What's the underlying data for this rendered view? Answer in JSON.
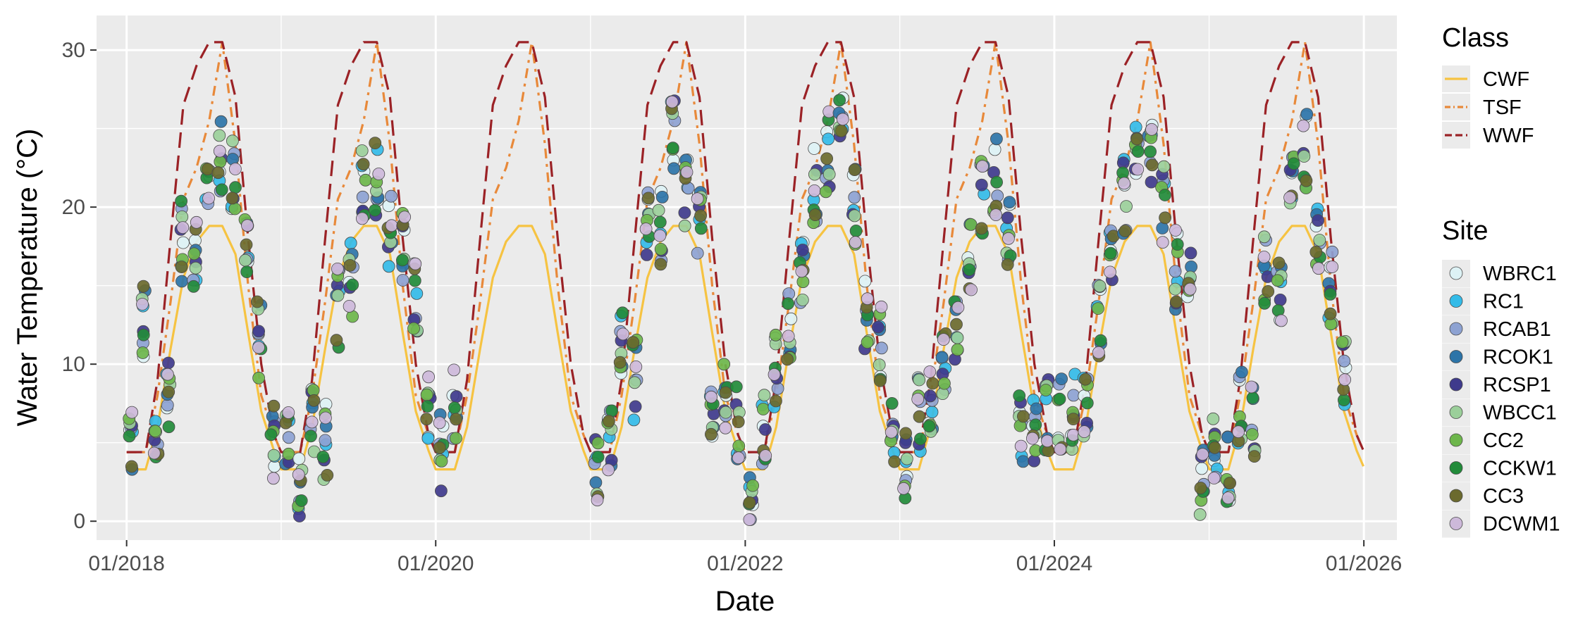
{
  "chart_data": {
    "type": "line+scatter",
    "xlabel": "Date",
    "ylabel": "Water Temperature (°C)",
    "ylim": [
      -1.2,
      32.2
    ],
    "xlim": [
      "2017-10-22",
      "2026-03-20"
    ],
    "x_ticks": [
      "01/2018",
      "01/2020",
      "01/2022",
      "01/2024",
      "01/2026"
    ],
    "y_ticks": [
      0,
      10,
      20,
      30
    ],
    "grid": true,
    "legend_position": "right",
    "class_legend": {
      "title": "Class",
      "entries": [
        {
          "name": "CWF",
          "color": "#F6C342",
          "dash": "solid"
        },
        {
          "name": "TSF",
          "color": "#E8893A",
          "dash": "dash-dot"
        },
        {
          "name": "WWF",
          "color": "#9B2226",
          "dash": "dashed"
        }
      ]
    },
    "site_legend": {
      "title": "Site",
      "entries": [
        {
          "name": "WBRC1",
          "color": "#DDF2F5"
        },
        {
          "name": "RC1",
          "color": "#33BBE8"
        },
        {
          "name": "RCAB1",
          "color": "#8DA2D2"
        },
        {
          "name": "RCOK1",
          "color": "#2C74A8"
        },
        {
          "name": "RCSP1",
          "color": "#3F3A8C"
        },
        {
          "name": "WBCC1",
          "color": "#9BCF9A"
        },
        {
          "name": "CC2",
          "color": "#6DB64B"
        },
        {
          "name": "CCKW1",
          "color": "#228B3A"
        },
        {
          "name": "CC3",
          "color": "#6B6A2E"
        },
        {
          "name": "DCWM1",
          "color": "#CDB9DA"
        }
      ]
    },
    "class_series": {
      "start": "2018-01-01",
      "end": "2025-12-31",
      "CWF_monthly": [
        3.3,
        3.3,
        6.0,
        11.0,
        15.5,
        17.8,
        18.8,
        18.8,
        17.0,
        12.0,
        7.0,
        4.5
      ],
      "TSF_monthly": [
        4.4,
        4.4,
        8.0,
        14.0,
        20.5,
        22.5,
        25.5,
        30.5,
        24.0,
        15.0,
        8.0,
        5.5
      ],
      "WWF_monthly": [
        4.4,
        4.4,
        9.0,
        18.0,
        26.5,
        29.0,
        30.5,
        30.5,
        27.0,
        18.0,
        10.0,
        5.5
      ]
    },
    "site_observations": {
      "sites_order": [
        "WBRC1",
        "RC1",
        "RCAB1",
        "RCOK1",
        "RCSP1",
        "WBCC1",
        "CC2",
        "CCKW1",
        "CC3",
        "DCWM1"
      ],
      "sampling_dates": [
        "2018-01-10",
        "2018-02-10",
        "2018-03-12",
        "2018-04-10",
        "2018-05-10",
        "2018-06-10",
        "2018-07-12",
        "2018-08-10",
        "2018-09-10",
        "2018-10-12",
        "2018-11-10",
        "2018-12-12",
        "2019-01-15",
        "2019-02-15",
        "2019-03-15",
        "2019-04-15",
        "2019-05-15",
        "2019-06-15",
        "2019-07-15",
        "2019-08-15",
        "2019-09-15",
        "2019-10-15",
        "2019-11-15",
        "2019-12-15",
        "2020-01-15",
        "2020-02-15",
        "2021-01-15",
        "2021-02-15",
        "2021-03-15",
        "2021-04-15",
        "2021-05-15",
        "2021-06-15",
        "2021-07-15",
        "2021-08-15",
        "2021-09-15",
        "2021-10-15",
        "2021-11-15",
        "2021-12-15",
        "2022-01-15",
        "2022-02-15",
        "2022-03-15",
        "2022-04-15",
        "2022-05-15",
        "2022-06-15",
        "2022-07-15",
        "2022-08-15",
        "2022-09-15",
        "2022-10-15",
        "2022-11-15",
        "2022-12-15",
        "2023-01-15",
        "2023-02-15",
        "2023-03-15",
        "2023-04-15",
        "2023-05-15",
        "2023-06-15",
        "2023-07-15",
        "2023-08-15",
        "2023-09-15",
        "2023-10-15",
        "2023-11-15",
        "2023-12-15",
        "2024-01-15",
        "2024-02-15",
        "2024-03-15",
        "2024-04-15",
        "2024-05-15",
        "2024-06-15",
        "2024-07-15",
        "2024-08-15",
        "2024-09-15",
        "2024-10-15",
        "2024-11-15",
        "2024-12-15",
        "2025-01-15",
        "2025-02-15",
        "2025-03-15",
        "2025-04-15",
        "2025-05-15",
        "2025-06-15",
        "2025-07-15",
        "2025-08-15",
        "2025-09-15",
        "2025-10-15",
        "2025-11-15"
      ],
      "centers": [
        5.0,
        12.5,
        4.7,
        8.5,
        17.8,
        17.5,
        21.5,
        23.0,
        22.0,
        17.8,
        11.5,
        5.2,
        5.2,
        2.6,
        6.8,
        5.0,
        13.5,
        15.5,
        21.8,
        22.0,
        18.5,
        17.2,
        14.0,
        6.8,
        4.5,
        7.5,
        3.4,
        5.0,
        11.0,
        9.0,
        18.5,
        18.5,
        24.5,
        21.0,
        18.5,
        8.0,
        8.0,
        6.5,
        1.0,
        6.2,
        9.5,
        12.0,
        15.5,
        21.5,
        23.5,
        24.5,
        20.0,
        13.0,
        11.5,
        5.3,
        3.5,
        6.9,
        8.3,
        9.5,
        12.0,
        16.5,
        20.5,
        22.0,
        18.0,
        6.0,
        5.5,
        6.9,
        7.0,
        7.1,
        7.3,
        12.5,
        17.5,
        20.5,
        22.5,
        23.5,
        20.0,
        16.0,
        14.5,
        3.0,
        4.0,
        3.0,
        7.0,
        6.5,
        15.8,
        14.5,
        21.5,
        23.5,
        18.0,
        15.0,
        9.0
      ],
      "spread": 2.6
    }
  }
}
